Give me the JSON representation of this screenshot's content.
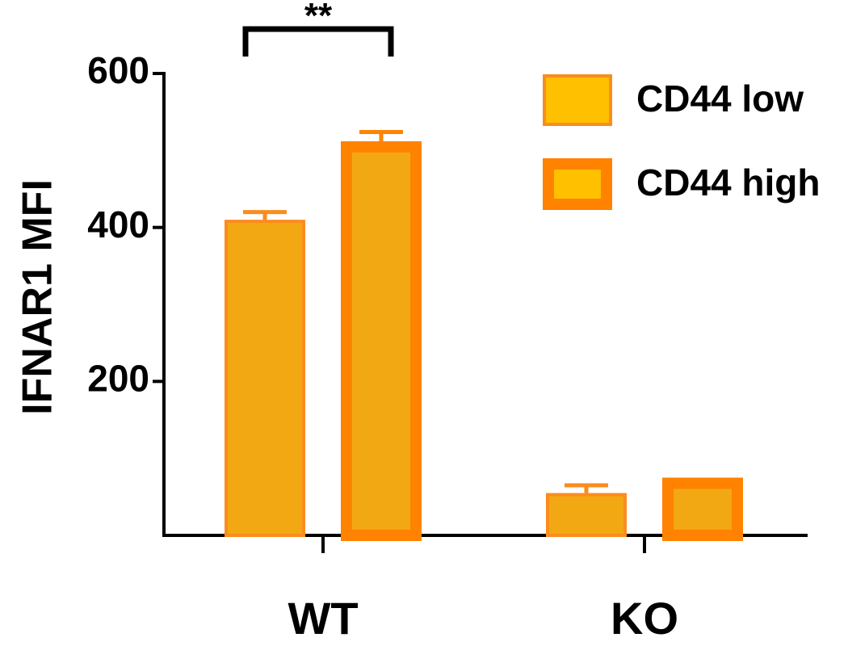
{
  "chart_data": {
    "type": "bar",
    "categories": [
      "WT",
      "KO"
    ],
    "series": [
      {
        "name": "CD44 low",
        "values": [
          410,
          55
        ],
        "errors": [
          10,
          10
        ],
        "fill": "#F2A812",
        "stroke": "#FB8C1E",
        "stroke_style": "thin"
      },
      {
        "name": "CD44 high",
        "values": [
          512,
          75
        ],
        "errors": [
          12,
          0
        ],
        "fill": "#F2A812",
        "stroke": "#FF8200",
        "stroke_style": "thick"
      }
    ],
    "ylabel": "IFNAR1 MFI",
    "xlabel": "",
    "ylim": [
      0,
      600
    ],
    "yticks": [
      {
        "value": 200,
        "label": "200"
      },
      {
        "value": 400,
        "label": "400"
      },
      {
        "value": 600,
        "label": "600"
      }
    ],
    "grid": false,
    "legend": "top-right",
    "annotations": [
      {
        "text": "**",
        "between": [
          "CD44 low",
          "CD44 high"
        ],
        "category": "WT"
      }
    ]
  }
}
